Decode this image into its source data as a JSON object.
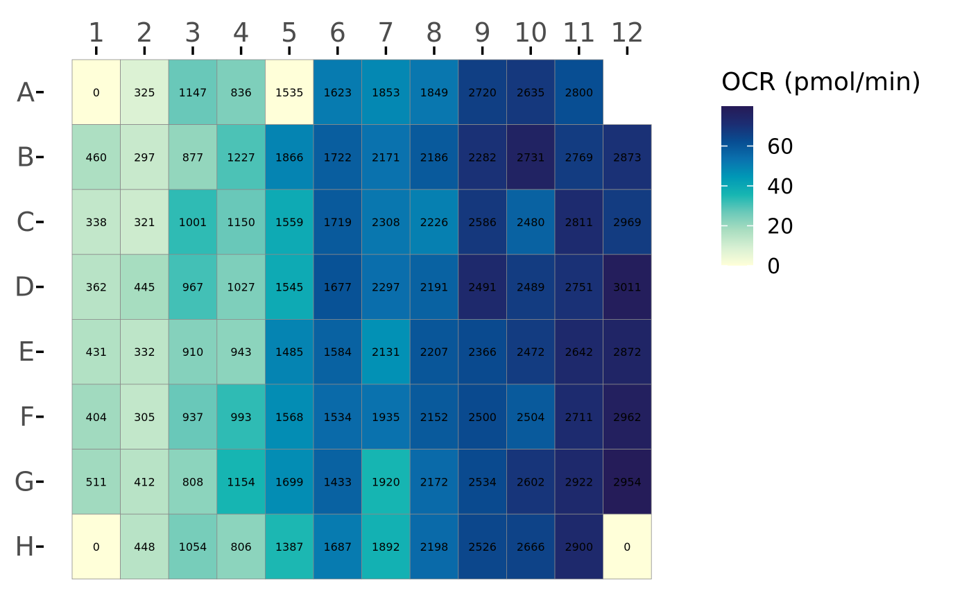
{
  "chart_data": {
    "type": "heatmap",
    "columns": [
      "1",
      "2",
      "3",
      "4",
      "5",
      "6",
      "7",
      "8",
      "9",
      "10",
      "11",
      "12"
    ],
    "rows": [
      "A",
      "B",
      "C",
      "D",
      "E",
      "F",
      "G",
      "H"
    ],
    "values": [
      [
        0,
        325,
        1147,
        836,
        1535,
        1623,
        1853,
        1849,
        2720,
        2635,
        2800,
        null
      ],
      [
        460,
        297,
        877,
        1227,
        1866,
        1722,
        2171,
        2186,
        2282,
        2731,
        2769,
        2873
      ],
      [
        338,
        321,
        1001,
        1150,
        1559,
        1719,
        2308,
        2226,
        2586,
        2480,
        2811,
        2969
      ],
      [
        362,
        445,
        967,
        1027,
        1545,
        1677,
        2297,
        2191,
        2491,
        2489,
        2751,
        3011
      ],
      [
        431,
        332,
        910,
        943,
        1485,
        1584,
        2131,
        2207,
        2366,
        2472,
        2642,
        2872
      ],
      [
        404,
        305,
        937,
        993,
        1568,
        1534,
        1935,
        2152,
        2500,
        2504,
        2711,
        2962
      ],
      [
        511,
        412,
        808,
        1154,
        1699,
        1433,
        1920,
        2172,
        2534,
        2602,
        2922,
        2954
      ],
      [
        0,
        448,
        1054,
        806,
        1387,
        1687,
        1892,
        2198,
        2526,
        2666,
        2900,
        0
      ]
    ],
    "fill_values": [
      [
        0,
        8,
        27,
        24,
        0,
        51,
        48,
        52,
        66,
        68,
        62,
        null
      ],
      [
        17,
        12,
        21,
        30,
        49,
        58,
        53,
        59,
        70,
        76,
        67,
        70
      ],
      [
        13,
        11,
        33,
        27,
        39,
        59,
        52,
        50,
        68,
        57,
        72,
        67
      ],
      [
        15,
        18,
        31,
        24,
        39,
        61,
        54,
        57,
        73,
        67,
        70,
        78
      ],
      [
        16,
        14,
        23,
        22,
        49,
        57,
        46,
        60,
        63,
        67,
        73,
        75
      ],
      [
        19,
        13,
        27,
        33,
        47,
        55,
        53,
        59,
        63,
        59,
        72,
        77
      ],
      [
        19,
        15,
        22,
        36,
        47,
        57,
        36,
        55,
        63,
        69,
        73,
        79
      ],
      [
        0,
        15,
        25,
        22,
        35,
        51,
        37,
        55,
        64,
        65,
        73,
        0
      ]
    ],
    "colorbar": {
      "title": "OCR (pmol/min)",
      "ticks": [
        0,
        20,
        40,
        60
      ],
      "range": [
        0,
        80
      ],
      "colors": [
        "#ffffd9",
        "#d8f0d3",
        "#a9ddc0",
        "#6cc9b9",
        "#17b6b2",
        "#0098b6",
        "#0a71ae",
        "#084d92",
        "#1c2d72",
        "#261a56"
      ]
    }
  }
}
